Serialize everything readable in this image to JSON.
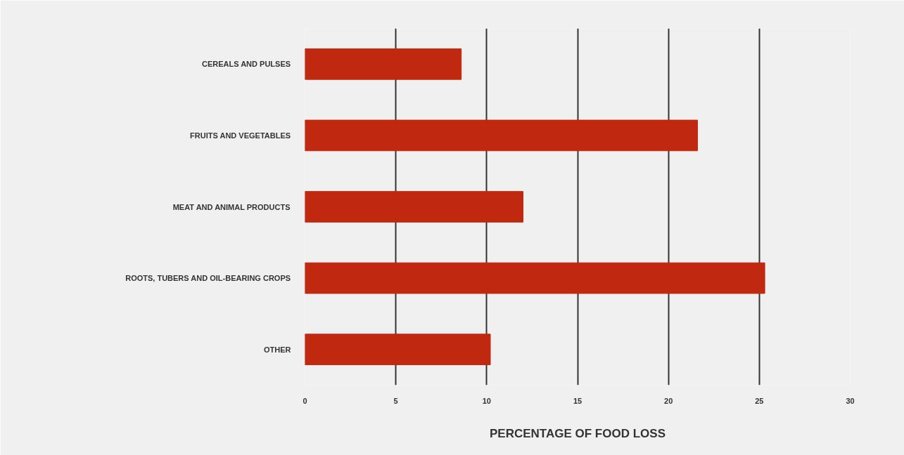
{
  "chart_data": {
    "type": "bar",
    "orientation": "horizontal",
    "xlabel": "PERCENTAGE OF FOOD LOSS",
    "categories": [
      "CEREALS AND PULSES",
      "FRUITS AND VEGETABLES",
      "MEAT AND ANIMAL PRODUCTS",
      "ROOTS, TUBERS AND OIL-BEARING CROPS",
      "OTHER"
    ],
    "values": [
      8.6,
      21.6,
      12.0,
      25.3,
      10.2
    ],
    "color": "#c0290f",
    "xlim": [
      0,
      30
    ],
    "xticks": [
      0,
      5,
      10,
      15,
      20,
      25,
      30
    ],
    "grid": "x"
  }
}
